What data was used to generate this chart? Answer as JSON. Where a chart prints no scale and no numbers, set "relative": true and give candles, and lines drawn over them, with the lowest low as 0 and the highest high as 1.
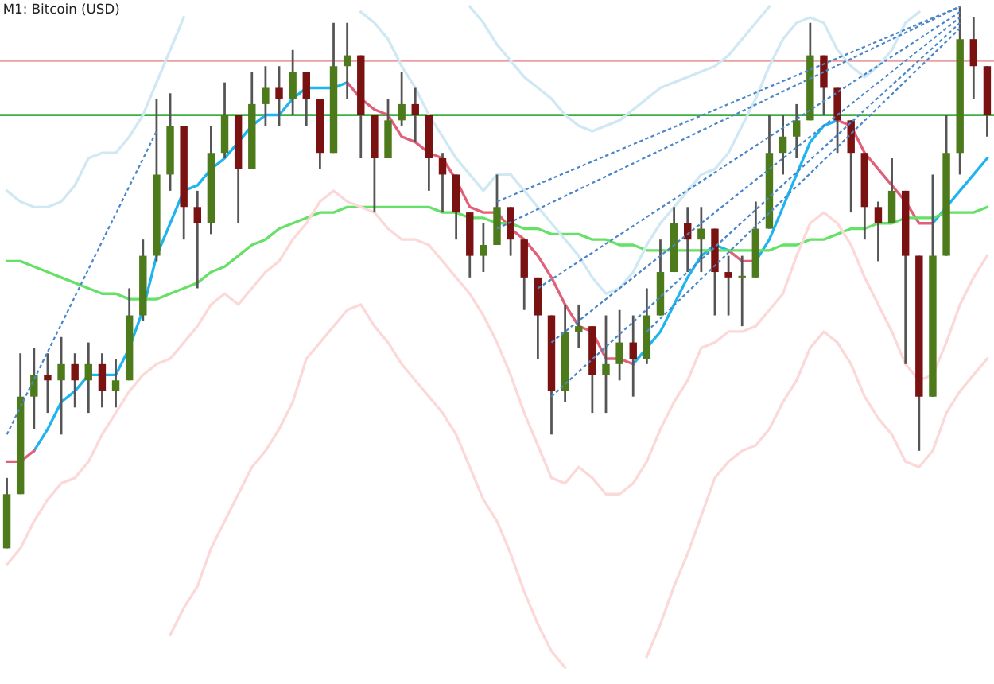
{
  "chart_data": {
    "type": "candlestick",
    "title": "M1: Bitcoin (USD)",
    "relative": true,
    "categories": [
      null,
      null,
      null,
      null,
      null,
      null,
      null,
      null,
      null,
      null,
      null,
      null,
      null,
      null,
      null,
      null,
      null,
      null,
      null,
      null,
      null,
      null,
      null,
      null,
      null,
      null,
      null,
      null,
      null,
      null,
      null,
      null,
      null,
      null,
      null,
      null,
      null,
      null,
      null,
      null,
      null,
      null,
      null,
      null,
      null,
      null,
      null,
      null,
      null,
      null,
      null,
      null,
      null,
      null,
      null,
      null,
      null,
      null,
      null,
      null,
      null,
      null,
      null,
      null,
      null,
      null,
      null,
      null,
      null,
      null,
      null,
      null,
      null
    ],
    "ohlc": [
      [
        0.0,
        0.13,
        0.0,
        0.1
      ],
      [
        0.1,
        0.36,
        0.1,
        0.28
      ],
      [
        0.28,
        0.37,
        0.22,
        0.32
      ],
      [
        0.32,
        0.36,
        0.25,
        0.31
      ],
      [
        0.31,
        0.39,
        0.21,
        0.34
      ],
      [
        0.34,
        0.36,
        0.26,
        0.31
      ],
      [
        0.31,
        0.38,
        0.25,
        0.34
      ],
      [
        0.34,
        0.36,
        0.26,
        0.29
      ],
      [
        0.29,
        0.35,
        0.26,
        0.31
      ],
      [
        0.31,
        0.48,
        0.31,
        0.43
      ],
      [
        0.43,
        0.57,
        0.42,
        0.54
      ],
      [
        0.54,
        0.83,
        0.53,
        0.69
      ],
      [
        0.69,
        0.84,
        0.66,
        0.78
      ],
      [
        0.78,
        0.78,
        0.57,
        0.63
      ],
      [
        0.63,
        0.66,
        0.48,
        0.6
      ],
      [
        0.6,
        0.78,
        0.58,
        0.73
      ],
      [
        0.73,
        0.86,
        0.72,
        0.8
      ],
      [
        0.8,
        0.8,
        0.6,
        0.7
      ],
      [
        0.7,
        0.88,
        0.7,
        0.82
      ],
      [
        0.82,
        0.89,
        0.78,
        0.85
      ],
      [
        0.85,
        0.89,
        0.78,
        0.83
      ],
      [
        0.83,
        0.92,
        0.8,
        0.88
      ],
      [
        0.88,
        0.88,
        0.78,
        0.83
      ],
      [
        0.83,
        0.83,
        0.7,
        0.73
      ],
      [
        0.73,
        0.97,
        0.73,
        0.89
      ],
      [
        0.89,
        0.97,
        0.83,
        0.91
      ],
      [
        0.91,
        0.91,
        0.72,
        0.8
      ],
      [
        0.8,
        0.8,
        0.62,
        0.72
      ],
      [
        0.72,
        0.83,
        0.72,
        0.79
      ],
      [
        0.79,
        0.88,
        0.78,
        0.82
      ],
      [
        0.82,
        0.85,
        0.75,
        0.8
      ],
      [
        0.8,
        0.8,
        0.66,
        0.72
      ],
      [
        0.72,
        0.73,
        0.62,
        0.69
      ],
      [
        0.69,
        0.69,
        0.57,
        0.62
      ],
      [
        0.62,
        0.62,
        0.5,
        0.54
      ],
      [
        0.54,
        0.6,
        0.51,
        0.56
      ],
      [
        0.56,
        0.69,
        0.56,
        0.63
      ],
      [
        0.63,
        0.63,
        0.54,
        0.57
      ],
      [
        0.57,
        0.57,
        0.44,
        0.5
      ],
      [
        0.5,
        0.5,
        0.35,
        0.43
      ],
      [
        0.43,
        0.43,
        0.21,
        0.29
      ],
      [
        0.29,
        0.45,
        0.27,
        0.4
      ],
      [
        0.4,
        0.45,
        0.37,
        0.41
      ],
      [
        0.41,
        0.41,
        0.25,
        0.32
      ],
      [
        0.32,
        0.43,
        0.25,
        0.34
      ],
      [
        0.34,
        0.44,
        0.31,
        0.38
      ],
      [
        0.38,
        0.43,
        0.28,
        0.35
      ],
      [
        0.35,
        0.48,
        0.34,
        0.43
      ],
      [
        0.43,
        0.57,
        0.43,
        0.51
      ],
      [
        0.51,
        0.63,
        0.51,
        0.6
      ],
      [
        0.6,
        0.63,
        0.51,
        0.57
      ],
      [
        0.57,
        0.63,
        0.51,
        0.59
      ],
      [
        0.59,
        0.59,
        0.43,
        0.51
      ],
      [
        0.51,
        0.54,
        0.43,
        0.5
      ],
      [
        0.5,
        0.54,
        0.41,
        0.5
      ],
      [
        0.5,
        0.64,
        0.5,
        0.59
      ],
      [
        0.59,
        0.8,
        0.59,
        0.73
      ],
      [
        0.73,
        0.8,
        0.69,
        0.76
      ],
      [
        0.76,
        0.82,
        0.72,
        0.79
      ],
      [
        0.79,
        0.97,
        0.79,
        0.91
      ],
      [
        0.91,
        0.91,
        0.8,
        0.85
      ],
      [
        0.85,
        0.85,
        0.73,
        0.79
      ],
      [
        0.79,
        0.79,
        0.62,
        0.73
      ],
      [
        0.73,
        0.73,
        0.57,
        0.63
      ],
      [
        0.63,
        0.64,
        0.53,
        0.6
      ],
      [
        0.6,
        0.72,
        0.6,
        0.66
      ],
      [
        0.66,
        0.66,
        0.34,
        0.54
      ],
      [
        0.54,
        0.54,
        0.18,
        0.28
      ],
      [
        0.28,
        0.69,
        0.28,
        0.54
      ],
      [
        0.54,
        0.8,
        0.54,
        0.73
      ],
      [
        0.73,
        1.0,
        0.69,
        0.94
      ],
      [
        0.94,
        0.98,
        0.83,
        0.89
      ],
      [
        0.89,
        0.89,
        0.76,
        0.8
      ]
    ],
    "series": [
      {
        "type": "line",
        "color": "#1eb4f0",
        "values": [
          null,
          null,
          0.18,
          0.22,
          0.27,
          0.29,
          0.32,
          0.32,
          0.32,
          0.37,
          0.44,
          0.54,
          0.6,
          0.66,
          0.67,
          0.7,
          0.72,
          0.75,
          0.78,
          0.8,
          0.8,
          0.83,
          0.85,
          0.85,
          0.85,
          0.86,
          null,
          null,
          null,
          null,
          null,
          null,
          null,
          null,
          null,
          null,
          null,
          null,
          null,
          null,
          null,
          null,
          null,
          null,
          null,
          null,
          0.34,
          0.37,
          0.4,
          0.45,
          0.5,
          0.54,
          0.56,
          0.55,
          null,
          0.53,
          0.57,
          0.63,
          0.69,
          0.75,
          0.78,
          0.79,
          null,
          null,
          null,
          null,
          null,
          null,
          0.6,
          0.63,
          0.66,
          0.69,
          0.72
        ]
      },
      {
        "type": "line",
        "color": "#e0607a",
        "values": [
          0.16,
          0.16,
          0.18,
          null,
          null,
          null,
          null,
          null,
          null,
          null,
          null,
          null,
          null,
          null,
          null,
          null,
          null,
          null,
          null,
          null,
          null,
          null,
          null,
          null,
          null,
          0.86,
          0.83,
          0.81,
          0.8,
          0.76,
          0.75,
          0.73,
          0.72,
          0.68,
          0.63,
          0.62,
          0.62,
          0.59,
          0.57,
          0.54,
          0.5,
          0.45,
          0.41,
          0.4,
          0.35,
          0.35,
          0.34,
          null,
          null,
          null,
          null,
          null,
          null,
          0.55,
          0.53,
          0.53,
          null,
          null,
          null,
          null,
          null,
          0.79,
          0.78,
          0.73,
          0.7,
          0.67,
          0.64,
          0.6,
          0.6,
          null,
          null,
          null,
          null
        ]
      },
      {
        "type": "line",
        "color": "#66e066",
        "values": [
          0.53,
          0.53,
          0.52,
          0.51,
          0.5,
          0.49,
          0.48,
          0.47,
          0.47,
          0.46,
          0.46,
          0.46,
          0.47,
          0.48,
          0.49,
          0.51,
          0.52,
          0.54,
          0.56,
          0.57,
          0.59,
          0.6,
          0.61,
          0.62,
          0.62,
          0.63,
          0.63,
          0.63,
          0.63,
          0.63,
          0.63,
          0.63,
          0.62,
          0.62,
          0.61,
          0.61,
          0.6,
          0.6,
          0.59,
          0.59,
          0.58,
          0.58,
          0.58,
          0.57,
          0.57,
          0.56,
          0.56,
          0.55,
          0.55,
          0.55,
          0.55,
          0.55,
          0.55,
          0.55,
          0.55,
          0.55,
          0.55,
          0.56,
          0.56,
          0.57,
          0.57,
          0.58,
          0.59,
          0.59,
          0.6,
          0.6,
          0.61,
          0.61,
          0.61,
          0.62,
          0.62,
          0.62,
          0.63
        ]
      },
      {
        "type": "line",
        "color": "#cfe8f3",
        "values": [
          0.66,
          0.64,
          0.63,
          0.63,
          0.64,
          0.67,
          0.72,
          0.73,
          0.73,
          0.76,
          0.8,
          0.86,
          0.92,
          0.98,
          null,
          null,
          null,
          null,
          null,
          null,
          null,
          null,
          null,
          null,
          null,
          null,
          0.99,
          0.97,
          0.94,
          0.89,
          0.85,
          0.8,
          0.76,
          0.72,
          0.69,
          0.66,
          0.69,
          0.69,
          0.66,
          0.63,
          0.6,
          0.57,
          0.54,
          0.5,
          0.47,
          0.48,
          0.51,
          0.56,
          0.6,
          0.63,
          0.66,
          0.69,
          0.7,
          0.73,
          0.78,
          0.83,
          0.89,
          0.94,
          0.97,
          0.98,
          0.97,
          0.92,
          0.89,
          0.87,
          0.89,
          0.92,
          0.97,
          0.99,
          null,
          null,
          null,
          null,
          null
        ]
      },
      {
        "type": "line",
        "color": "#cfe8f3",
        "values": [
          null,
          null,
          null,
          null,
          null,
          null,
          null,
          null,
          null,
          null,
          null,
          null,
          null,
          null,
          null,
          null,
          null,
          null,
          null,
          null,
          null,
          null,
          null,
          null,
          null,
          null,
          null,
          null,
          null,
          null,
          null,
          null,
          null,
          null,
          1.0,
          0.97,
          0.93,
          0.9,
          0.87,
          0.85,
          0.83,
          0.8,
          0.78,
          0.77,
          0.78,
          0.79,
          0.81,
          0.83,
          0.85,
          0.86,
          0.87,
          0.88,
          0.89,
          0.91,
          0.94,
          0.97,
          1.0,
          null,
          null,
          null,
          null,
          null,
          null,
          null,
          null,
          null,
          null,
          null,
          null,
          null,
          null,
          null,
          null
        ]
      },
      {
        "type": "line",
        "color": "#fcd9d9",
        "values": [
          -0.03,
          0.0,
          0.05,
          0.09,
          0.12,
          0.13,
          0.16,
          0.21,
          0.25,
          0.29,
          0.32,
          0.34,
          0.35,
          0.38,
          0.41,
          0.45,
          0.47,
          0.45,
          0.48,
          0.51,
          0.53,
          0.57,
          0.6,
          0.64,
          0.66,
          0.64,
          0.63,
          0.62,
          0.59,
          0.57,
          0.57,
          0.56,
          0.53,
          0.5,
          0.47,
          0.43,
          0.38,
          0.32,
          0.25,
          0.19,
          0.13,
          0.12,
          0.15,
          0.13,
          0.1,
          0.1,
          0.12,
          0.16,
          0.22,
          0.27,
          0.31,
          0.37,
          0.38,
          0.4,
          0.4,
          0.41,
          0.44,
          0.47,
          0.54,
          0.6,
          0.62,
          0.6,
          0.56,
          0.5,
          0.45,
          0.4,
          0.34,
          0.31,
          0.32,
          0.38,
          0.45,
          0.5,
          0.54
        ]
      },
      {
        "type": "line",
        "color": "#fcd9d9",
        "values": [
          null,
          null,
          null,
          null,
          null,
          null,
          null,
          null,
          null,
          null,
          null,
          null,
          -0.16,
          -0.11,
          -0.07,
          0.0,
          0.05,
          0.1,
          0.15,
          0.18,
          0.22,
          0.27,
          0.35,
          0.38,
          0.41,
          0.44,
          0.45,
          0.41,
          0.38,
          0.34,
          0.31,
          0.28,
          0.25,
          0.21,
          0.15,
          0.09,
          0.05,
          -0.01,
          -0.08,
          -0.14,
          -0.19,
          -0.22,
          null,
          null,
          null,
          null,
          null,
          -0.2,
          -0.14,
          -0.07,
          -0.01,
          0.06,
          0.13,
          0.16,
          0.18,
          0.19,
          0.22,
          0.27,
          0.31,
          0.37,
          0.4,
          0.38,
          0.34,
          0.28,
          0.24,
          0.21,
          0.16,
          0.15,
          0.18,
          0.25,
          0.29,
          0.32,
          0.35
        ]
      },
      {
        "type": "line",
        "color": "#4a86c8",
        "line_style": "dashed",
        "values": [
          0.21,
          null,
          null,
          null,
          null,
          null,
          null,
          null,
          null,
          null,
          null,
          0.77,
          null,
          null,
          null,
          null,
          null,
          null,
          null,
          null,
          null,
          null,
          null,
          null,
          null,
          null,
          null,
          null,
          null,
          null,
          null,
          null,
          null,
          null,
          null,
          null,
          null,
          null,
          null,
          null,
          null,
          null,
          null,
          null,
          null,
          null,
          null,
          null,
          null,
          null,
          null,
          null,
          null,
          null,
          null,
          null,
          null,
          null,
          null,
          null,
          null,
          null,
          null,
          null,
          null,
          null,
          null,
          null,
          null,
          null,
          null,
          null,
          null
        ]
      },
      {
        "type": "line",
        "color": "#4a86c8",
        "line_style": "dashed",
        "values": [
          null,
          null,
          null,
          null,
          null,
          null,
          null,
          null,
          null,
          null,
          null,
          null,
          null,
          null,
          null,
          null,
          null,
          null,
          null,
          null,
          null,
          null,
          null,
          null,
          null,
          null,
          null,
          null,
          null,
          null,
          null,
          null,
          null,
          null,
          null,
          null,
          0.64,
          null,
          null,
          null,
          null,
          null,
          null,
          null,
          null,
          null,
          null,
          null,
          null,
          null,
          null,
          null,
          null,
          null,
          null,
          null,
          null,
          null,
          null,
          null,
          null,
          null,
          null,
          null,
          null,
          null,
          null,
          null,
          null,
          null,
          1.0,
          null,
          null
        ]
      },
      {
        "type": "line",
        "color": "#4a86c8",
        "line_style": "dashed",
        "values": [
          null,
          null,
          null,
          null,
          null,
          null,
          null,
          null,
          null,
          null,
          null,
          null,
          null,
          null,
          null,
          null,
          null,
          null,
          null,
          null,
          null,
          null,
          null,
          null,
          null,
          null,
          null,
          null,
          null,
          null,
          null,
          null,
          null,
          null,
          null,
          null,
          0.59,
          null,
          null,
          null,
          null,
          null,
          null,
          null,
          null,
          null,
          null,
          null,
          null,
          null,
          null,
          null,
          null,
          null,
          null,
          null,
          null,
          null,
          null,
          null,
          null,
          null,
          null,
          null,
          null,
          null,
          null,
          null,
          null,
          null,
          1.0,
          null,
          null
        ]
      },
      {
        "type": "line",
        "color": "#4a86c8",
        "line_style": "dashed",
        "values": [
          null,
          null,
          null,
          null,
          null,
          null,
          null,
          null,
          null,
          null,
          null,
          null,
          null,
          null,
          null,
          null,
          null,
          null,
          null,
          null,
          null,
          null,
          null,
          null,
          null,
          null,
          null,
          null,
          null,
          null,
          null,
          null,
          null,
          null,
          null,
          null,
          null,
          null,
          null,
          0.48,
          null,
          null,
          null,
          null,
          null,
          null,
          null,
          null,
          null,
          null,
          null,
          null,
          null,
          null,
          null,
          null,
          null,
          null,
          null,
          null,
          null,
          null,
          null,
          null,
          null,
          null,
          null,
          null,
          null,
          null,
          0.99,
          null,
          null
        ]
      },
      {
        "type": "line",
        "color": "#4a86c8",
        "line_style": "dashed",
        "values": [
          null,
          null,
          null,
          null,
          null,
          null,
          null,
          null,
          null,
          null,
          null,
          null,
          null,
          null,
          null,
          null,
          null,
          null,
          null,
          null,
          null,
          null,
          null,
          null,
          null,
          null,
          null,
          null,
          null,
          null,
          null,
          null,
          null,
          null,
          null,
          null,
          null,
          null,
          null,
          null,
          0.38,
          null,
          null,
          null,
          null,
          null,
          null,
          null,
          null,
          null,
          null,
          null,
          null,
          null,
          null,
          null,
          null,
          null,
          null,
          null,
          null,
          null,
          null,
          null,
          null,
          null,
          null,
          null,
          null,
          null,
          0.98,
          null,
          null
        ]
      },
      {
        "type": "line",
        "color": "#4a86c8",
        "line_style": "dashed",
        "values": [
          null,
          null,
          null,
          null,
          null,
          null,
          null,
          null,
          null,
          null,
          null,
          null,
          null,
          null,
          null,
          null,
          null,
          null,
          null,
          null,
          null,
          null,
          null,
          null,
          null,
          null,
          null,
          null,
          null,
          null,
          null,
          null,
          null,
          null,
          null,
          null,
          null,
          null,
          null,
          null,
          0.28,
          null,
          null,
          null,
          null,
          null,
          null,
          null,
          null,
          null,
          null,
          null,
          null,
          null,
          null,
          null,
          null,
          null,
          null,
          null,
          null,
          null,
          null,
          null,
          null,
          null,
          null,
          null,
          null,
          null,
          0.97,
          null,
          null
        ]
      },
      {
        "type": "line",
        "color": "#4a86c8",
        "line_style": "dashed",
        "values": [
          null,
          null,
          null,
          null,
          null,
          null,
          null,
          null,
          null,
          null,
          null,
          null,
          null,
          null,
          null,
          null,
          null,
          null,
          null,
          null,
          null,
          null,
          null,
          null,
          null,
          null,
          null,
          null,
          null,
          null,
          null,
          null,
          null,
          null,
          null,
          null,
          null,
          null,
          null,
          null,
          null,
          null,
          null,
          null,
          null,
          null,
          null,
          0.4,
          null,
          null,
          null,
          null,
          null,
          null,
          null,
          null,
          null,
          null,
          null,
          null,
          null,
          null,
          null,
          null,
          null,
          null,
          null,
          null,
          null,
          null,
          0.96,
          null,
          null
        ]
      }
    ],
    "ref_lines": [
      {
        "axis": "y",
        "value": 0.9,
        "color": "#e8a0a0"
      },
      {
        "axis": "y",
        "value": 0.8,
        "color": "#3cb043"
      }
    ]
  }
}
